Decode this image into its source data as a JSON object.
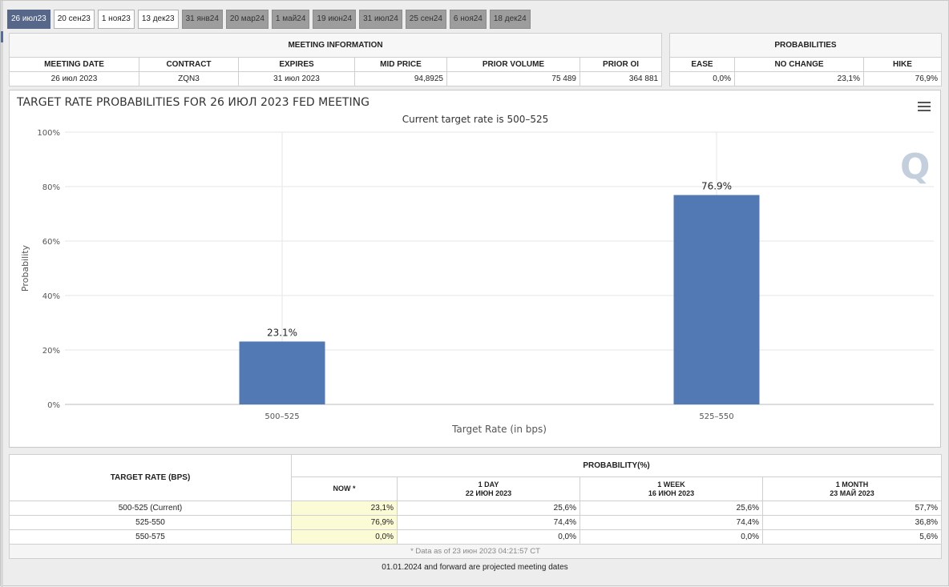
{
  "tabs": [
    {
      "label": "26 июл23",
      "style": "active"
    },
    {
      "label": "20 сен23",
      "style": "light"
    },
    {
      "label": "1 ноя23",
      "style": "light"
    },
    {
      "label": "13 дек23",
      "style": "light"
    },
    {
      "label": "31 янв24",
      "style": "dark"
    },
    {
      "label": "20 мар24",
      "style": "dark"
    },
    {
      "label": "1 май24",
      "style": "dark"
    },
    {
      "label": "19 июн24",
      "style": "dark"
    },
    {
      "label": "31 июл24",
      "style": "dark"
    },
    {
      "label": "25 сен24",
      "style": "dark"
    },
    {
      "label": "6 ноя24",
      "style": "dark"
    },
    {
      "label": "18 дек24",
      "style": "dark"
    }
  ],
  "meeting_info": {
    "title": "MEETING INFORMATION",
    "headers": [
      "MEETING DATE",
      "CONTRACT",
      "EXPIRES",
      "MID PRICE",
      "PRIOR VOLUME",
      "PRIOR OI"
    ],
    "values": [
      "26 июл 2023",
      "ZQN3",
      "31 июл 2023",
      "94,8925",
      "75 489",
      "364 881"
    ]
  },
  "probabilities": {
    "title": "PROBABILITIES",
    "headers": [
      "EASE",
      "NO CHANGE",
      "HIKE"
    ],
    "values": [
      "0,0%",
      "23,1%",
      "76,9%"
    ]
  },
  "chart_data": {
    "type": "bar",
    "title": "TARGET RATE PROBABILITIES FOR 26 ИЮЛ 2023 FED MEETING",
    "subtitle": "Current target rate is 500–525",
    "categories": [
      "500–525",
      "525–550"
    ],
    "values": [
      23.1,
      76.9
    ],
    "data_labels": [
      "23.1%",
      "76.9%"
    ],
    "xlabel": "Target Rate (in bps)",
    "ylabel": "Probability",
    "ylim": [
      0,
      100
    ],
    "yticks": [
      "0%",
      "20%",
      "40%",
      "60%",
      "80%",
      "100%"
    ],
    "grid": true,
    "bar_color": "#5279b4",
    "watermark": "Q"
  },
  "history": {
    "target_header": "TARGET RATE (BPS)",
    "prob_header": "PROBABILITY(%)",
    "columns": [
      {
        "line1": "NOW *",
        "line2": ""
      },
      {
        "line1": "1 DAY",
        "line2": "22 ИЮН 2023"
      },
      {
        "line1": "1 WEEK",
        "line2": "16 ИЮН 2023"
      },
      {
        "line1": "1 MONTH",
        "line2": "23 МАЙ 2023"
      }
    ],
    "rows": [
      {
        "rate": "500-525 (Current)",
        "values": [
          "23,1%",
          "25,6%",
          "25,6%",
          "57,7%"
        ]
      },
      {
        "rate": "525-550",
        "values": [
          "76,9%",
          "74,4%",
          "74,4%",
          "36,8%"
        ]
      },
      {
        "rate": "550-575",
        "values": [
          "0,0%",
          "0,0%",
          "0,0%",
          "5,6%"
        ]
      }
    ],
    "footnote": "* Data as of 23 июн 2023 04:21:57 CT"
  },
  "projected_note": "01.01.2024 and forward are projected meeting dates"
}
